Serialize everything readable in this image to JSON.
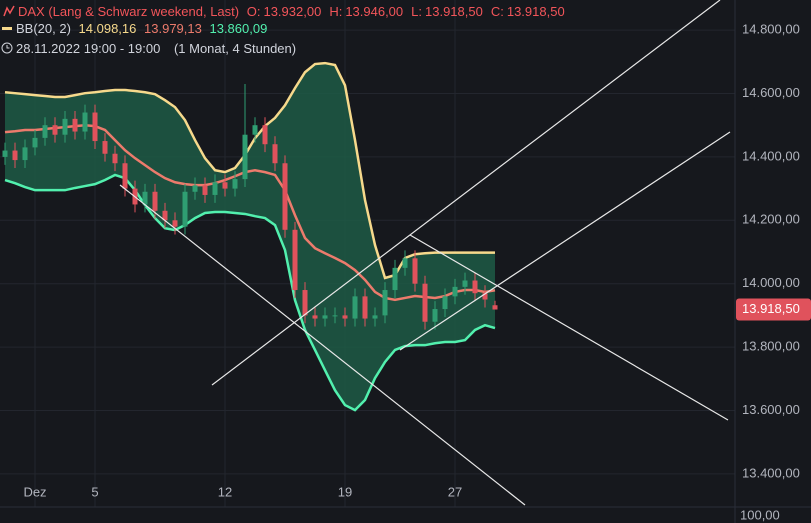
{
  "header": {
    "symbol": "DAX (Lang & Schwarz weekend, Last)",
    "ohlc": [
      {
        "label": "O:",
        "value": "13.932,00"
      },
      {
        "label": "H:",
        "value": "13.946,00"
      },
      {
        "label": "L:",
        "value": "13.918,50"
      },
      {
        "label": "C:",
        "value": "13.918,50"
      }
    ],
    "indicator": "BB(20, 2)",
    "indicator_values": [
      "14.098,16",
      "13.979,13",
      "13.860,09"
    ],
    "range": "28.11.2022 19:00 - 19:00",
    "period": "(1 Monat, 4 Stunden)"
  },
  "chart_data": {
    "type": "candlestick",
    "categories": [
      null,
      null,
      null,
      "Dez",
      null,
      null,
      null,
      null,
      null,
      "5",
      null,
      null,
      null,
      null,
      null,
      null,
      null,
      null,
      null,
      null,
      null,
      null,
      "12",
      null,
      null,
      null,
      null,
      null,
      null,
      null,
      null,
      null,
      null,
      null,
      "19",
      null,
      null,
      null,
      null,
      null,
      null,
      null,
      null,
      null,
      null,
      "27",
      null,
      null,
      null,
      null
    ],
    "open": [
      14400,
      14420,
      14390,
      14430,
      14460,
      14500,
      14470,
      14520,
      14480,
      14540,
      14450,
      14410,
      14380,
      14300,
      14250,
      14290,
      14230,
      14200,
      14180,
      14290,
      14310,
      14280,
      14320,
      14300,
      14330,
      14470,
      14500,
      14440,
      14380,
      14170,
      13980,
      13900,
      13890,
      13900,
      13900,
      13890,
      13960,
      13890,
      13900,
      13980,
      14050,
      14080,
      14000,
      13880,
      13920,
      13960,
      13990,
      14010,
      13970,
      13932
    ],
    "high": [
      14445,
      14445,
      14455,
      14485,
      14525,
      14525,
      14545,
      14545,
      14565,
      14565,
      14475,
      14435,
      14405,
      14325,
      14315,
      14315,
      14255,
      14225,
      14315,
      14335,
      14335,
      14345,
      14345,
      14355,
      14630,
      14525,
      14525,
      14465,
      14405,
      14195,
      14005,
      13925,
      13925,
      13925,
      13925,
      13985,
      13985,
      13925,
      14005,
      14075,
      14105,
      14105,
      14025,
      13945,
      13985,
      14015,
      14035,
      14035,
      13995,
      13946
    ],
    "low": [
      14375,
      14365,
      14365,
      14405,
      14435,
      14445,
      14445,
      14455,
      14455,
      14425,
      14385,
      14355,
      14275,
      14225,
      14225,
      14205,
      14175,
      14155,
      14155,
      14265,
      14255,
      14255,
      14275,
      14275,
      14305,
      14445,
      14415,
      14355,
      14145,
      13955,
      13875,
      13865,
      13865,
      13875,
      13865,
      13865,
      13865,
      13865,
      13875,
      13955,
      14025,
      13975,
      13855,
      13855,
      13895,
      13935,
      13965,
      13945,
      13925,
      13918.5
    ],
    "close": [
      14420,
      14390,
      14430,
      14460,
      14500,
      14470,
      14520,
      14480,
      14540,
      14450,
      14410,
      14380,
      14300,
      14250,
      14290,
      14230,
      14200,
      14180,
      14290,
      14310,
      14280,
      14320,
      14300,
      14330,
      14470,
      14500,
      14440,
      14380,
      14170,
      13980,
      13900,
      13890,
      13900,
      13900,
      13890,
      13960,
      13890,
      13900,
      13980,
      14050,
      14080,
      14000,
      13880,
      13920,
      13960,
      13990,
      14010,
      13970,
      13950,
      13918.5
    ],
    "up_color": "#2f9e72",
    "down_color": "#e0525c",
    "series": [
      {
        "name": "upper",
        "color": "#f6d98c",
        "values": [
          14604,
          14601,
          14598,
          14595,
          14592,
          14589,
          14589,
          14595,
          14601,
          14604,
          14608,
          14611,
          14611,
          14608,
          14604,
          14598,
          14579,
          14557,
          14516,
          14453,
          14396,
          14358,
          14352,
          14365,
          14406,
          14459,
          14497,
          14523,
          14563,
          14617,
          14667,
          14693,
          14696,
          14690,
          14626,
          14453,
          14264,
          14122,
          14018,
          14027,
          14081,
          14093,
          14096,
          14098,
          14098,
          14098,
          14098,
          14098,
          14098,
          14098.16
        ]
      },
      {
        "name": "basis",
        "color": "#ec7b6c",
        "values": [
          14478,
          14481,
          14485,
          14485,
          14488,
          14491,
          14494,
          14497,
          14500,
          14497,
          14485,
          14453,
          14421,
          14396,
          14374,
          14352,
          14333,
          14320,
          14314,
          14311,
          14311,
          14317,
          14327,
          14339,
          14352,
          14358,
          14352,
          14343,
          14295,
          14216,
          14144,
          14112,
          14096,
          14081,
          14065,
          14043,
          14012,
          13974,
          13955,
          13949,
          13955,
          13961,
          13958,
          13955,
          13961,
          13974,
          13980,
          13980,
          13974,
          13979.13
        ]
      },
      {
        "name": "lower",
        "color": "#52f0ae",
        "values": [
          14327,
          14317,
          14305,
          14295,
          14295,
          14295,
          14295,
          14302,
          14308,
          14314,
          14327,
          14343,
          14333,
          14295,
          14248,
          14207,
          14175,
          14169,
          14185,
          14207,
          14223,
          14226,
          14226,
          14223,
          14220,
          14213,
          14207,
          14185,
          14106,
          13948,
          13854,
          13791,
          13727,
          13664,
          13617,
          13601,
          13633,
          13702,
          13753,
          13791,
          13803,
          13806,
          13806,
          13812,
          13816,
          13816,
          13822,
          13854,
          13869,
          13860.09
        ]
      }
    ],
    "band_fill": "#1d5a45",
    "ylim": [
      13245,
      14895
    ],
    "yticks": [
      {
        "value": 13400,
        "label": "13.400,00"
      },
      {
        "value": 13600,
        "label": "13.600,00"
      },
      {
        "value": 13800,
        "label": "13.800,00"
      },
      {
        "value": 14000,
        "label": "14.000,00"
      },
      {
        "value": 14200,
        "label": "14.200,00"
      },
      {
        "value": 14400,
        "label": "14.400,00"
      },
      {
        "value": 14600,
        "label": "14.600,00"
      },
      {
        "value": 14800,
        "label": "14.800,00"
      }
    ],
    "grid": true,
    "last_price_label": "13.918,50",
    "lower_pane_label": "100,00"
  }
}
